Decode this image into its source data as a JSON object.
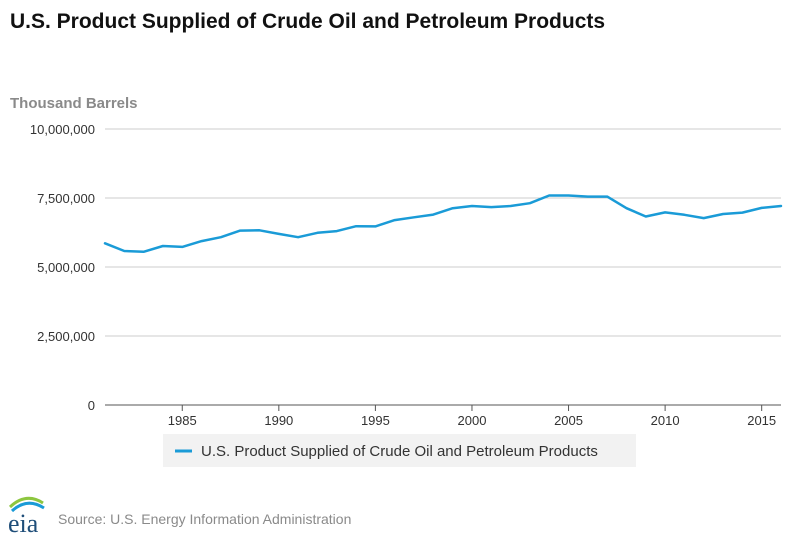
{
  "chart_data": {
    "type": "line",
    "title": "U.S. Product Supplied of Crude Oil and Petroleum Products",
    "ylabel": "Thousand Barrels",
    "xlabel": "",
    "ylim": [
      0,
      10000000
    ],
    "xlim": [
      1981,
      2016
    ],
    "yticks": [
      0,
      2500000,
      5000000,
      7500000,
      10000000
    ],
    "ytick_labels": [
      "0",
      "2,500,000",
      "5,000,000",
      "7,500,000",
      "10,000,000"
    ],
    "xticks": [
      1985,
      1990,
      1995,
      2000,
      2005,
      2010,
      2015
    ],
    "xtick_labels": [
      "1985",
      "1990",
      "1995",
      "2000",
      "2005",
      "2010",
      "2015"
    ],
    "grid": "horizontal",
    "legend_position": "bottom",
    "series": [
      {
        "name": "U.S. Product Supplied of Crude Oil and Petroleum Products",
        "color": "#1a9bd7",
        "x": [
          1981,
          1982,
          1983,
          1984,
          1985,
          1986,
          1987,
          1988,
          1989,
          1990,
          1991,
          1992,
          1993,
          1994,
          1995,
          1996,
          1997,
          1998,
          1999,
          2000,
          2001,
          2002,
          2003,
          2004,
          2005,
          2006,
          2007,
          2008,
          2009,
          2010,
          2011,
          2012,
          2013,
          2014,
          2015,
          2016
        ],
        "values": [
          5860000,
          5580000,
          5550000,
          5760000,
          5730000,
          5940000,
          6080000,
          6320000,
          6330000,
          6200000,
          6080000,
          6240000,
          6300000,
          6480000,
          6470000,
          6700000,
          6800000,
          6900000,
          7130000,
          7210000,
          7170000,
          7210000,
          7310000,
          7590000,
          7590000,
          7550000,
          7550000,
          7130000,
          6830000,
          6980000,
          6890000,
          6770000,
          6920000,
          6970000,
          7140000,
          7210000
        ]
      }
    ]
  },
  "footer": {
    "source": "Source: U.S. Energy Information Administration",
    "logo_text": "eia"
  }
}
